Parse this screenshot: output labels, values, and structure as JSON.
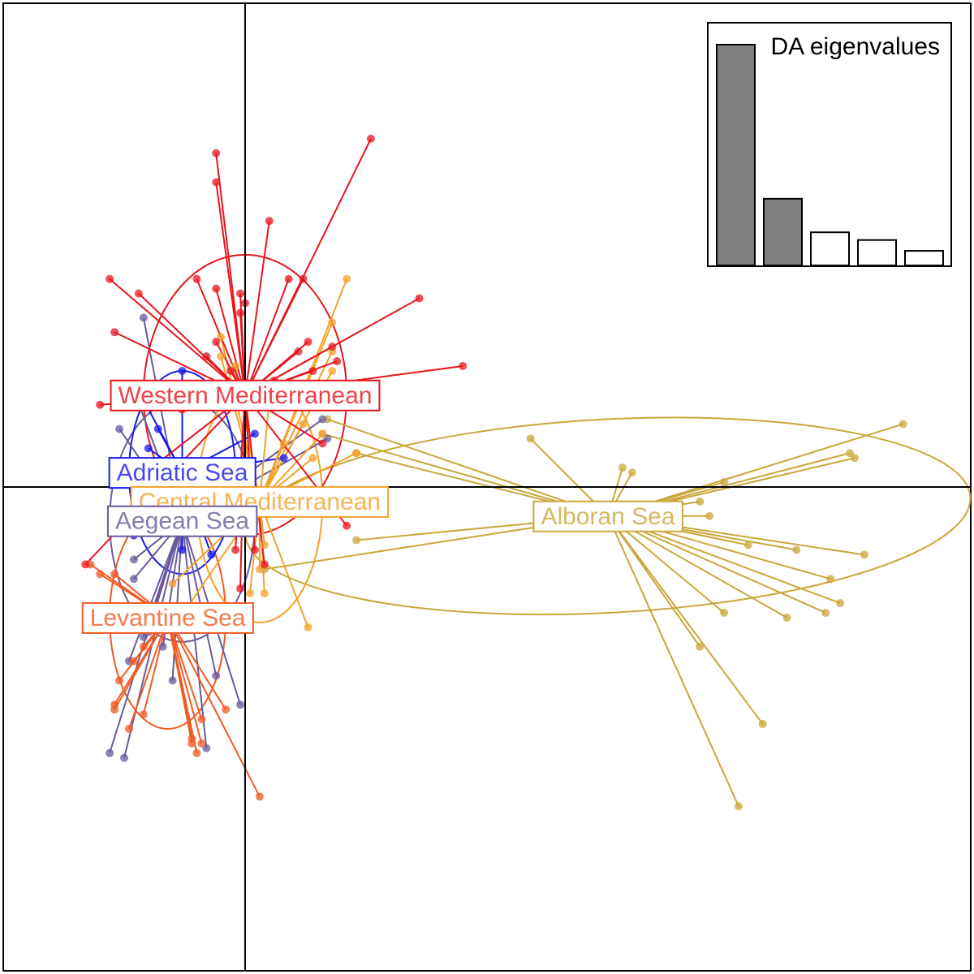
{
  "chart_data": {
    "type": "scatter",
    "title": "",
    "xlabel": "",
    "ylabel": "",
    "xlim": [
      -5,
      15
    ],
    "ylim": [
      -10,
      10
    ],
    "axes_origin": [
      0,
      0
    ],
    "grid": false,
    "points_style": "star plot (each sample linked to its group centroid) with 95% inertia ellipses",
    "series": [
      {
        "name": "Western Mediterranean",
        "color": "#e8141c",
        "centroid": [
          0,
          1.9
        ],
        "ellipse": {
          "rx": 2.1,
          "ry": 2.9,
          "angle": 0
        },
        "points": [
          [
            2.6,
            7.2
          ],
          [
            -0.6,
            6.9
          ],
          [
            -0.6,
            6.3
          ],
          [
            0.5,
            5.5
          ],
          [
            -2.8,
            4.3
          ],
          [
            -2.2,
            4.0
          ],
          [
            1.2,
            4.3
          ],
          [
            0.9,
            4.3
          ],
          [
            -1.0,
            4.3
          ],
          [
            -0.6,
            4.1
          ],
          [
            -0.1,
            4.0
          ],
          [
            0,
            3.8
          ],
          [
            -0.1,
            3.6
          ],
          [
            3.6,
            3.9
          ],
          [
            -2.7,
            3.2
          ],
          [
            -0.6,
            3.0
          ],
          [
            -0.8,
            2.7
          ],
          [
            1.3,
            3.0
          ],
          [
            1.1,
            2.8
          ],
          [
            1.8,
            2.9
          ],
          [
            1.9,
            2.6
          ],
          [
            1.4,
            2.4
          ],
          [
            4.5,
            2.5
          ],
          [
            0.6,
            2.2
          ],
          [
            -0.3,
            2.4
          ],
          [
            -1.3,
            1.6
          ],
          [
            -2.3,
            1.9
          ],
          [
            -3.0,
            1.7
          ],
          [
            1.6,
            0.9
          ],
          [
            -1.8,
            0.5
          ],
          [
            2.1,
            -0.8
          ],
          [
            -3.3,
            -1.6
          ],
          [
            0.2,
            -1.3
          ],
          [
            -0.2,
            -1.3
          ],
          [
            0.4,
            -1.6
          ],
          [
            -0.1,
            -2.1
          ]
        ]
      },
      {
        "name": "Adriatic Sea",
        "color": "#1a1aee",
        "centroid": [
          -1.3,
          0.3
        ],
        "ellipse": {
          "rx": 1.1,
          "ry": 2.1,
          "angle": 0
        },
        "points": [
          [
            -1.3,
            2.4
          ],
          [
            -2.1,
            1.8
          ],
          [
            -1.8,
            1.2
          ],
          [
            -2.0,
            0.8
          ],
          [
            0.2,
            1.1
          ],
          [
            0.8,
            0.6
          ],
          [
            -0.2,
            0.2
          ],
          [
            -1.9,
            -0.2
          ],
          [
            -2.3,
            -1.0
          ],
          [
            -1.0,
            -0.9
          ],
          [
            -1.3,
            -1.3
          ],
          [
            -0.7,
            -1.4
          ],
          [
            -1.5,
            -0.8
          ]
        ]
      },
      {
        "name": "Central Mediterranean",
        "color": "#f4a12a",
        "centroid": [
          0.3,
          -0.3
        ],
        "ellipse": {
          "rx": 1.3,
          "ry": 2.5,
          "angle": 0
        },
        "points": [
          [
            2.1,
            4.3
          ],
          [
            1.8,
            3.4
          ],
          [
            1.8,
            2.8
          ],
          [
            -0.5,
            3.1
          ],
          [
            -0.5,
            2.7
          ],
          [
            -0.2,
            2.5
          ],
          [
            1.8,
            2.4
          ],
          [
            0.5,
            1.8
          ],
          [
            1.2,
            1.3
          ],
          [
            2.3,
            0.7
          ],
          [
            1.6,
            1.1
          ],
          [
            0.8,
            0.9
          ],
          [
            1.4,
            0.6
          ],
          [
            -1.0,
            -0.9
          ],
          [
            0.4,
            -1.2
          ],
          [
            0.3,
            -1.7
          ],
          [
            0.1,
            -2.2
          ],
          [
            0.4,
            -2.2
          ],
          [
            1.3,
            -2.9
          ],
          [
            -1.5,
            -2.0
          ],
          [
            -1.2,
            -2.5
          ]
        ]
      },
      {
        "name": "Aegean Sea",
        "color": "#6a5a9c",
        "centroid": [
          -1.3,
          -0.7
        ],
        "ellipse": {
          "rx": 1.5,
          "ry": 2.5,
          "angle": 0
        },
        "points": [
          [
            -2.1,
            3.5
          ],
          [
            -2.3,
            2.0
          ],
          [
            -2.6,
            1.2
          ],
          [
            1.7,
            1.0
          ],
          [
            1.6,
            1.4
          ],
          [
            -2.3,
            -1.5
          ],
          [
            -2.3,
            -1.9
          ],
          [
            -2.0,
            -3.0
          ],
          [
            -2.1,
            -3.1
          ],
          [
            -1.7,
            -3.3
          ],
          [
            -2.4,
            -3.6
          ],
          [
            -0.6,
            -3.9
          ],
          [
            -1.5,
            -4.0
          ],
          [
            -2.5,
            -5.6
          ],
          [
            -0.1,
            -4.5
          ],
          [
            -2.8,
            -5.5
          ],
          [
            -0.8,
            -5.4
          ]
        ]
      },
      {
        "name": "Levantine Sea",
        "color": "#f15a22",
        "centroid": [
          -1.6,
          -2.7
        ],
        "ellipse": {
          "rx": 1.2,
          "ry": 2.3,
          "angle": 0
        },
        "points": [
          [
            -3.2,
            -1.6
          ],
          [
            -3.0,
            -1.8
          ],
          [
            -2.7,
            -1.8
          ],
          [
            -2.3,
            -3.6
          ],
          [
            -2.1,
            -3.3
          ],
          [
            -2.6,
            -4.0
          ],
          [
            -2.7,
            -4.6
          ],
          [
            -2.1,
            -4.7
          ],
          [
            -2.4,
            -5.0
          ],
          [
            -1.1,
            -5.3
          ],
          [
            -1.1,
            -5.2
          ],
          [
            -0.4,
            -4.6
          ],
          [
            -0.9,
            -4.8
          ],
          [
            -1.0,
            -5.5
          ],
          [
            -0.9,
            -5.3
          ],
          [
            0.3,
            -6.4
          ],
          [
            -2.7,
            -4.5
          ]
        ]
      },
      {
        "name": "Alboran Sea",
        "color": "#c9a73a",
        "centroid": [
          7.5,
          -0.6
        ],
        "ellipse": {
          "rx": 7.5,
          "ry": 2.0,
          "angle": -3
        },
        "points": [
          [
            1.7,
            1.4
          ],
          [
            1.6,
            1.1
          ],
          [
            2.3,
            0.7
          ],
          [
            5.9,
            1.0
          ],
          [
            7.8,
            0.4
          ],
          [
            8.0,
            0.3
          ],
          [
            13.6,
            1.3
          ],
          [
            12.5,
            0.7
          ],
          [
            12.6,
            0.6
          ],
          [
            9.9,
            0.1
          ],
          [
            9.4,
            -0.3
          ],
          [
            9.6,
            -0.6
          ],
          [
            8.1,
            -0.5
          ],
          [
            10.4,
            -1.2
          ],
          [
            11.4,
            -1.3
          ],
          [
            12.8,
            -1.4
          ],
          [
            12.1,
            -1.9
          ],
          [
            12.3,
            -2.4
          ],
          [
            12.0,
            -2.6
          ],
          [
            11.2,
            -2.7
          ],
          [
            9.9,
            -2.6
          ],
          [
            9.4,
            -3.3
          ],
          [
            10.7,
            -4.9
          ],
          [
            10.2,
            -6.6
          ],
          [
            2.3,
            -1.1
          ],
          [
            0.4,
            -1.7
          ]
        ]
      }
    ],
    "inset": {
      "type": "bar",
      "title": "DA eigenvalues",
      "values": [
        100,
        30.2,
        15,
        11.5,
        6.6
      ],
      "retained_count": 2,
      "retained_color": "#808080",
      "other_color": "#ffffff"
    }
  },
  "group_labels": [
    {
      "text": "Western Mediterranean",
      "series": 0
    },
    {
      "text": "Adriatic Sea",
      "series": 1
    },
    {
      "text": "Central Mediterranean",
      "series": 2
    },
    {
      "text": "Aegean Sea",
      "series": 3
    },
    {
      "text": "Levantine Sea",
      "series": 4
    },
    {
      "text": "Alboran Sea",
      "series": 5
    }
  ]
}
